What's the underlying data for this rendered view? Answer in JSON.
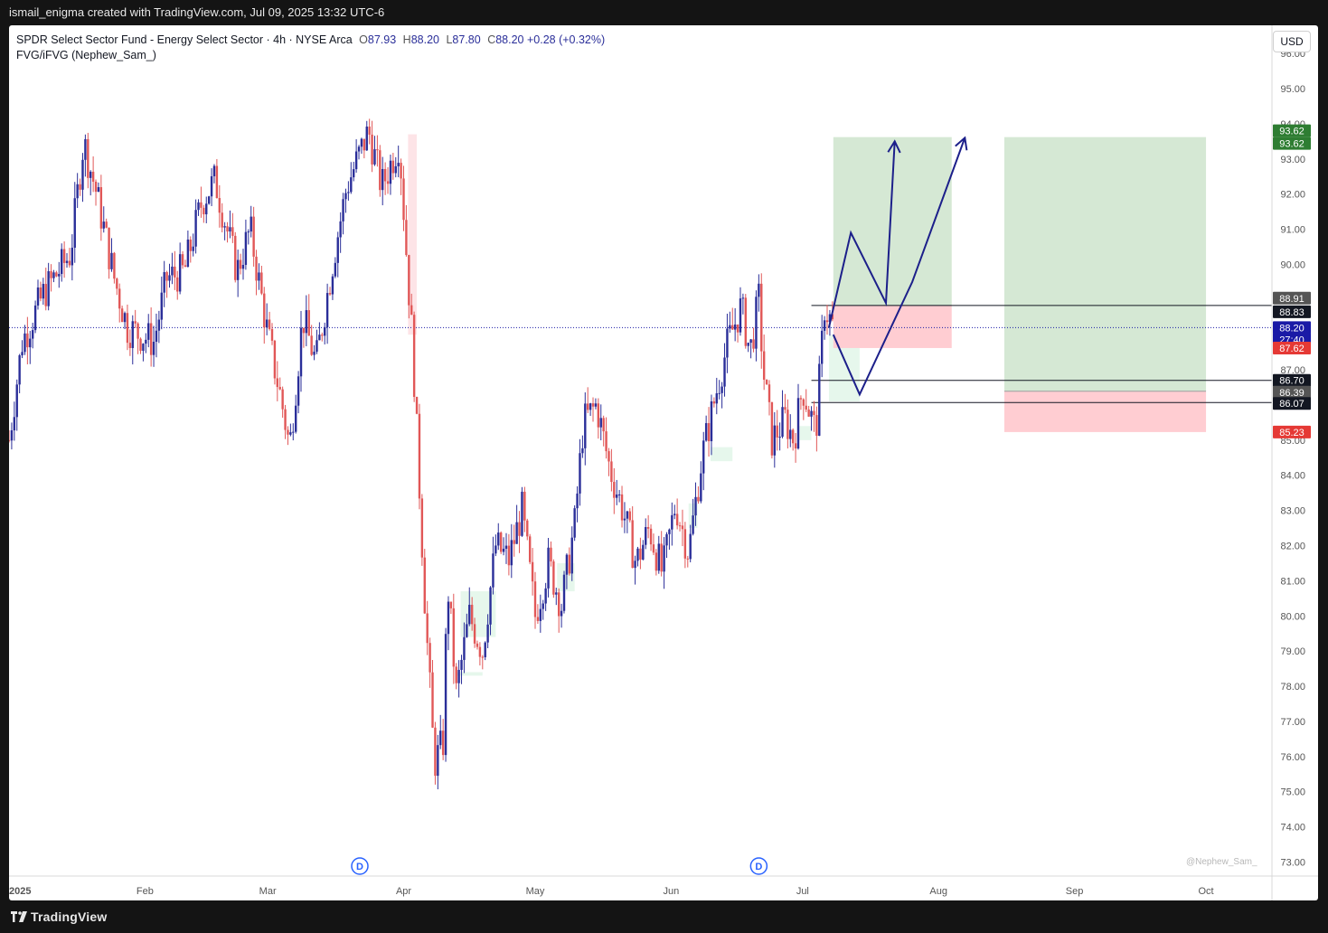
{
  "header": {
    "credit": "ismail_enigma created with TradingView.com, Jul 09, 2025 13:32 UTC-6"
  },
  "footer": {
    "brand": "TradingView"
  },
  "legend": {
    "symbol": "SPDR Select Sector Fund - Energy Select Sector · 4h · NYSE Arca",
    "o_label": "O",
    "o": "87.93",
    "h_label": "H",
    "h": "88.20",
    "l_label": "L",
    "l": "87.80",
    "c_label": "C",
    "c": "88.20",
    "change": "+0.28 (+0.32%)",
    "indicator": "FVG/iFVG (Nephew_Sam_)"
  },
  "currency_button": "USD",
  "watermark": "@Nephew_Sam_",
  "colors": {
    "bull": "#2a2e99",
    "bear": "#e15757",
    "reward": "#d5e8d4",
    "risk": "#ffcdd2",
    "fvg_bull": "#e6f7ec",
    "fvg_bear": "#fde4e7",
    "path": "#1c1f8a"
  },
  "chart_data": {
    "type": "candlestick",
    "y_axis": {
      "min": 72.6,
      "max": 96.8,
      "ticks": [
        "96.00",
        "95.00",
        "94.00",
        "93.00",
        "92.00",
        "91.00",
        "90.00",
        "89.00",
        "88.00",
        "87.00",
        "86.00",
        "85.00",
        "84.00",
        "83.00",
        "82.00",
        "81.00",
        "80.00",
        "79.00",
        "78.00",
        "77.00",
        "76.00",
        "75.00",
        "74.00",
        "73.00"
      ]
    },
    "x_axis": {
      "labels": [
        {
          "label": "2025",
          "day": 0
        },
        {
          "label": "Feb",
          "day": 31
        },
        {
          "label": "Mar",
          "day": 59
        },
        {
          "label": "Apr",
          "day": 90
        },
        {
          "label": "May",
          "day": 120
        },
        {
          "label": "Jun",
          "day": 151
        },
        {
          "label": "Jul",
          "day": 181
        },
        {
          "label": "Aug",
          "day": 212
        },
        {
          "label": "Sep",
          "day": 243
        },
        {
          "label": "Oct",
          "day": 273
        }
      ]
    },
    "anchors": [
      {
        "day": 0,
        "price": 85.0
      },
      {
        "day": 3,
        "price": 87.8
      },
      {
        "day": 8,
        "price": 89.2
      },
      {
        "day": 14,
        "price": 90.3
      },
      {
        "day": 17,
        "price": 93.5
      },
      {
        "day": 20,
        "price": 92.0
      },
      {
        "day": 24,
        "price": 89.6
      },
      {
        "day": 27,
        "price": 88.2
      },
      {
        "day": 33,
        "price": 87.8
      },
      {
        "day": 36,
        "price": 89.6
      },
      {
        "day": 40,
        "price": 89.8
      },
      {
        "day": 44,
        "price": 91.8
      },
      {
        "day": 47,
        "price": 92.4
      },
      {
        "day": 52,
        "price": 89.8
      },
      {
        "day": 55,
        "price": 91.0
      },
      {
        "day": 59,
        "price": 88.0
      },
      {
        "day": 62,
        "price": 86.2
      },
      {
        "day": 64,
        "price": 84.8
      },
      {
        "day": 67,
        "price": 88.5
      },
      {
        "day": 70,
        "price": 87.2
      },
      {
        "day": 74,
        "price": 90.2
      },
      {
        "day": 77,
        "price": 92.2
      },
      {
        "day": 82,
        "price": 93.8
      },
      {
        "day": 85,
        "price": 92.2
      },
      {
        "day": 89,
        "price": 93.5
      },
      {
        "day": 91,
        "price": 89.6
      },
      {
        "day": 92,
        "price": 87.8
      },
      {
        "day": 95,
        "price": 80.0
      },
      {
        "day": 97,
        "price": 75.8
      },
      {
        "day": 99,
        "price": 76.4
      },
      {
        "day": 100,
        "price": 81.0
      },
      {
        "day": 102,
        "price": 77.8
      },
      {
        "day": 105,
        "price": 80.0
      },
      {
        "day": 108,
        "price": 79.0
      },
      {
        "day": 111,
        "price": 82.0
      },
      {
        "day": 114,
        "price": 81.6
      },
      {
        "day": 117,
        "price": 83.0
      },
      {
        "day": 120,
        "price": 80.0
      },
      {
        "day": 123,
        "price": 81.5
      },
      {
        "day": 126,
        "price": 80.3
      },
      {
        "day": 129,
        "price": 82.6
      },
      {
        "day": 131,
        "price": 85.5
      },
      {
        "day": 134,
        "price": 86.0
      },
      {
        "day": 137,
        "price": 84.2
      },
      {
        "day": 140,
        "price": 83.0
      },
      {
        "day": 143,
        "price": 81.5
      },
      {
        "day": 146,
        "price": 82.5
      },
      {
        "day": 149,
        "price": 81.2
      },
      {
        "day": 152,
        "price": 83.2
      },
      {
        "day": 155,
        "price": 81.8
      },
      {
        "day": 158,
        "price": 84.5
      },
      {
        "day": 161,
        "price": 86.2
      },
      {
        "day": 164,
        "price": 87.8
      },
      {
        "day": 167,
        "price": 88.8
      },
      {
        "day": 169,
        "price": 87.5
      },
      {
        "day": 171,
        "price": 89.0
      },
      {
        "day": 172,
        "price": 87.0
      },
      {
        "day": 174,
        "price": 85.0
      },
      {
        "day": 177,
        "price": 85.6
      },
      {
        "day": 179,
        "price": 85.0
      },
      {
        "day": 181,
        "price": 86.5
      },
      {
        "day": 184,
        "price": 85.2
      },
      {
        "day": 186,
        "price": 88.8
      },
      {
        "day": 188,
        "price": 88.2
      }
    ],
    "positions": [
      {
        "start_day": 188,
        "end_day": 215,
        "entry": 88.83,
        "target": 93.62,
        "stop": 87.62
      },
      {
        "start_day": 227,
        "end_day": 273,
        "entry": 86.39,
        "target": 93.62,
        "stop": 85.23
      }
    ],
    "horizontal_lines": [
      {
        "price": 88.83,
        "start_day": 183
      },
      {
        "price": 86.7,
        "start_day": 183
      },
      {
        "price": 86.07,
        "start_day": 183
      }
    ],
    "current_price": 88.2,
    "projected_path_1": [
      {
        "day": 187,
        "price": 88.2
      },
      {
        "day": 192,
        "price": 90.9
      },
      {
        "day": 200,
        "price": 88.9
      },
      {
        "day": 202,
        "price": 93.5
      }
    ],
    "projected_path_2": [
      {
        "day": 188,
        "price": 88.0
      },
      {
        "day": 194,
        "price": 86.3
      },
      {
        "day": 206,
        "price": 89.5
      },
      {
        "day": 218,
        "price": 93.6
      }
    ],
    "fvg_zones": [
      {
        "from_day": 91,
        "to_day": 93,
        "top": 93.7,
        "bottom": 88.0,
        "kind": "bear"
      },
      {
        "from_day": 187,
        "to_day": 194,
        "top": 88.0,
        "bottom": 86.1,
        "kind": "bull"
      },
      {
        "from_day": 103,
        "to_day": 111,
        "top": 80.7,
        "bottom": 79.4,
        "kind": "bull"
      },
      {
        "from_day": 102,
        "to_day": 108,
        "top": 78.4,
        "bottom": 78.3,
        "kind": "bull"
      },
      {
        "from_day": 125,
        "to_day": 129,
        "top": 81.5,
        "bottom": 80.7,
        "kind": "bull"
      },
      {
        "from_day": 155,
        "to_day": 157,
        "top": 83.2,
        "bottom": 82.5,
        "kind": "bull"
      },
      {
        "from_day": 160,
        "to_day": 165,
        "top": 84.8,
        "bottom": 84.4,
        "kind": "bull"
      },
      {
        "from_day": 180,
        "to_day": 183,
        "top": 85.4,
        "bottom": 85.0,
        "kind": "bull"
      }
    ],
    "dividend_markers": [
      {
        "day": 80,
        "label": "D"
      },
      {
        "day": 171,
        "label": "D"
      }
    ],
    "price_labels": [
      {
        "text": "93.62",
        "price": 93.62,
        "bg": "#2e7d32",
        "offset": -7
      },
      {
        "text": "93.62",
        "price": 93.62,
        "bg": "#2e7d32",
        "offset": 7
      },
      {
        "text": "88.91",
        "price": 88.91,
        "bg": "#555555",
        "offset": -5
      },
      {
        "text": "88.83",
        "price": 88.83,
        "bg": "#131722",
        "offset": 7
      },
      {
        "text": "88.20",
        "price": 88.2,
        "bg": "#1a1aa6",
        "offset": 0
      },
      {
        "text": "27:40",
        "price": 88.2,
        "bg": "#1a1aa6",
        "offset": 13
      },
      {
        "text": "87.62",
        "price": 87.62,
        "bg": "#e53935",
        "offset": 0
      },
      {
        "text": "86.70",
        "price": 86.7,
        "bg": "#131722",
        "offset": 0
      },
      {
        "text": "86.39",
        "price": 86.39,
        "bg": "#555555",
        "offset": 1
      },
      {
        "text": "86.07",
        "price": 86.07,
        "bg": "#131722",
        "offset": 1
      },
      {
        "text": "85.23",
        "price": 85.23,
        "bg": "#e53935",
        "offset": 0
      }
    ]
  }
}
